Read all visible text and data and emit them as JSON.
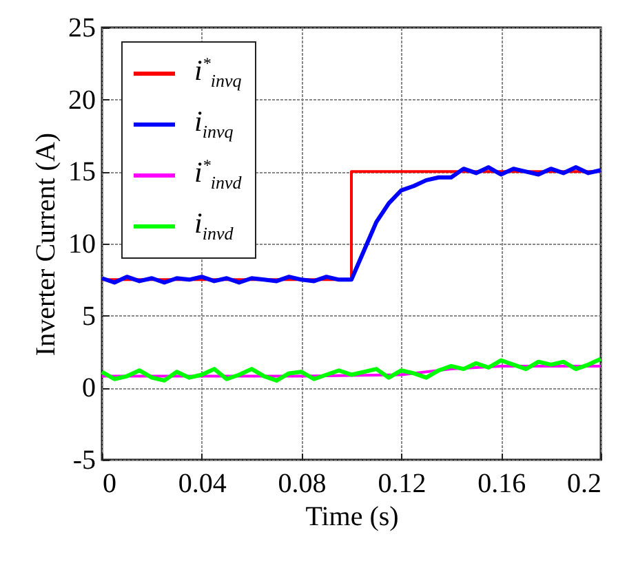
{
  "chart_data": {
    "type": "line",
    "xlabel": "Time (s)",
    "ylabel": "Inverter Current (A)",
    "xlim": [
      0,
      0.2
    ],
    "xticks": [
      0,
      0.04,
      0.08,
      0.12,
      0.16,
      0.2
    ],
    "ylim": [
      -5,
      25
    ],
    "yticks": [
      -5,
      0,
      5,
      10,
      15,
      20,
      25
    ],
    "grid": true,
    "legend": "top left",
    "line_style": "solid",
    "series": [
      {
        "name": "i$^{*}$$_{invq}$",
        "color": "#ff0000",
        "x": [
          0,
          0.1,
          0.1,
          0.2
        ],
        "values": [
          7.5,
          7.5,
          15,
          15
        ]
      },
      {
        "name": "i$_{invq}$",
        "color": "#0000ff",
        "x": [
          0,
          0.005,
          0.01,
          0.015,
          0.02,
          0.025,
          0.03,
          0.035,
          0.04,
          0.045,
          0.05,
          0.055,
          0.06,
          0.065,
          0.07,
          0.075,
          0.08,
          0.085,
          0.09,
          0.095,
          0.1,
          0.105,
          0.11,
          0.115,
          0.12,
          0.125,
          0.13,
          0.135,
          0.14,
          0.145,
          0.15,
          0.155,
          0.16,
          0.165,
          0.17,
          0.175,
          0.18,
          0.185,
          0.19,
          0.195,
          0.2
        ],
        "values": [
          7.6,
          7.3,
          7.7,
          7.4,
          7.6,
          7.3,
          7.6,
          7.5,
          7.7,
          7.4,
          7.6,
          7.3,
          7.6,
          7.5,
          7.4,
          7.7,
          7.5,
          7.4,
          7.7,
          7.5,
          7.5,
          9.5,
          11.5,
          12.8,
          13.7,
          14.0,
          14.4,
          14.6,
          14.6,
          15.2,
          14.9,
          15.3,
          14.8,
          15.2,
          15.0,
          14.8,
          15.2,
          14.9,
          15.3,
          14.9,
          15.1
        ]
      },
      {
        "name": "i$^{*}$$_{invd}$",
        "color": "#ff00ff",
        "x": [
          0,
          0.04,
          0.08,
          0.12,
          0.13,
          0.14,
          0.15,
          0.16,
          0.2
        ],
        "values": [
          0.8,
          0.8,
          0.8,
          0.9,
          1.1,
          1.3,
          1.4,
          1.5,
          1.5
        ]
      },
      {
        "name": "i$_{invd}$",
        "color": "#00ff00",
        "x": [
          0,
          0.005,
          0.01,
          0.015,
          0.02,
          0.025,
          0.03,
          0.035,
          0.04,
          0.045,
          0.05,
          0.055,
          0.06,
          0.065,
          0.07,
          0.075,
          0.08,
          0.085,
          0.09,
          0.095,
          0.1,
          0.105,
          0.11,
          0.115,
          0.12,
          0.125,
          0.13,
          0.135,
          0.14,
          0.145,
          0.15,
          0.155,
          0.16,
          0.165,
          0.17,
          0.175,
          0.18,
          0.185,
          0.19,
          0.195,
          0.2
        ],
        "values": [
          1.1,
          0.6,
          0.8,
          1.2,
          0.7,
          0.5,
          1.1,
          0.7,
          0.9,
          1.3,
          0.6,
          0.9,
          1.3,
          0.8,
          0.5,
          1.0,
          1.1,
          0.6,
          0.9,
          1.2,
          0.9,
          1.1,
          1.3,
          0.7,
          1.2,
          1.0,
          0.7,
          1.2,
          1.5,
          1.3,
          1.7,
          1.4,
          1.9,
          1.6,
          1.3,
          1.8,
          1.6,
          1.8,
          1.3,
          1.6,
          2.0
        ]
      }
    ]
  }
}
